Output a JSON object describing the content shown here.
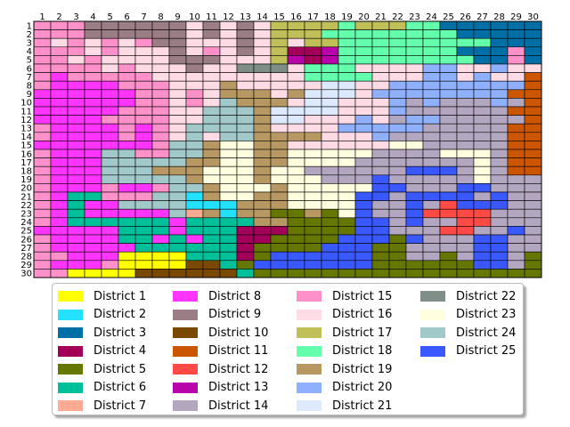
{
  "chart_data": {
    "type": "heatmap",
    "title": "",
    "xlabel": "",
    "ylabel": "",
    "x_ticks": [
      "1",
      "2",
      "3",
      "4",
      "5",
      "6",
      "7",
      "8",
      "9",
      "10",
      "11",
      "12",
      "13",
      "14",
      "15",
      "16",
      "17",
      "18",
      "19",
      "20",
      "21",
      "22",
      "23",
      "24",
      "25",
      "26",
      "27",
      "28",
      "29",
      "30"
    ],
    "y_ticks": [
      "1",
      "2",
      "3",
      "4",
      "5",
      "6",
      "7",
      "8",
      "9",
      "10",
      "11",
      "12",
      "13",
      "14",
      "15",
      "16",
      "17",
      "18",
      "19",
      "20",
      "21",
      "22",
      "23",
      "24",
      "25",
      "26",
      "27",
      "28",
      "29",
      "30"
    ],
    "legend_position": "bottom",
    "legend": [
      {
        "district": 1,
        "name": "District 1",
        "color": "#ffff00"
      },
      {
        "district": 2,
        "name": "District 2",
        "color": "#22e2ff"
      },
      {
        "district": 3,
        "name": "District 3",
        "color": "#006fa6"
      },
      {
        "district": 4,
        "name": "District 4",
        "color": "#a30059"
      },
      {
        "district": 5,
        "name": "District 5",
        "color": "#667700"
      },
      {
        "district": 6,
        "name": "District 6",
        "color": "#00c09a"
      },
      {
        "district": 7,
        "name": "District 7",
        "color": "#ffaa92"
      },
      {
        "district": 8,
        "name": "District 8",
        "color": "#ff34ff"
      },
      {
        "district": 9,
        "name": "District 9",
        "color": "#9a7d85"
      },
      {
        "district": 10,
        "name": "District 10",
        "color": "#7a4900"
      },
      {
        "district": 11,
        "name": "District 11",
        "color": "#cc5500"
      },
      {
        "district": 12,
        "name": "District 12",
        "color": "#ff4a46"
      },
      {
        "district": 13,
        "name": "District 13",
        "color": "#b903aa"
      },
      {
        "district": 14,
        "name": "District 14",
        "color": "#b3a6c0"
      },
      {
        "district": 15,
        "name": "District 15",
        "color": "#ff90c9"
      },
      {
        "district": 16,
        "name": "District 16",
        "color": "#ffdbe5"
      },
      {
        "district": 17,
        "name": "District 17",
        "color": "#c0bf58"
      },
      {
        "district": 18,
        "name": "District 18",
        "color": "#63ffac"
      },
      {
        "district": 19,
        "name": "District 19",
        "color": "#b79762"
      },
      {
        "district": 20,
        "name": "District 20",
        "color": "#8fb0ff"
      },
      {
        "district": 21,
        "name": "District 21",
        "color": "#dde9ff"
      },
      {
        "district": 22,
        "name": "District 22",
        "color": "#7f8f88"
      },
      {
        "district": 23,
        "name": "District 23",
        "color": "#ffffe0"
      },
      {
        "district": 24,
        "name": "District 24",
        "color": "#a2c9ca"
      },
      {
        "district": 25,
        "name": "District 25",
        "color": "#3a58ff"
      }
    ],
    "grid_rows": [
      "15 15 15 9 9 9 9 9 9 16 9 16 9 16 17 17 17 17 18 17 17 17 18 18 3 3 3 3 3 3",
      "15 15 15 9 9 9 9 9 9 16 9 16 9 16 17 17 17 18 18 18 18 18 18 18 18 3 3 3 3 3",
      "15 16 15 16 15 16 15 9 9 16 16 16 9 16 17 16 17 17 18 18 18 18 18 18 18 18 18 3 3 3",
      "15 15 15 16 15 16 16 16 9 16 15 16 9 16 17 4 4 13 18 18 18 18 18 18 18 3 3 3 15 3",
      "15 15 16 15 16 16 16 16 9 9 9 16 16 16 17 13 4 13 18 18 18 18 18 18 18 18 3 3 15 3",
      "15 15 15 15 16 15 16 16 16 9 16 16 22 22 22 16 18 18 18 16 16 16 16 20 20 16 16 20 16 16",
      "15 8 15 15 15 15 15 16 16 16 16 16 16 16 16 16 18 18 18 18 16 16 16 20 20 16 20 16 16 11",
      "15 8 8 8 8 15 15 15 16 16 16 19 16 16 16 16 16 21 21 16 16 20 20 20 20 20 20 20 20 11",
      "8 8 8 8 8 8 15 15 16 15 16 19 19 19 16 19 21 21 21 16 20 20 20 20 20 20 20 20 11 11",
      "8 8 8 8 8 8 15 15 16 15 16 24 19 19 19 16 21 21 16 16 16 20 14 20 14 14 14 20 14 11",
      "8 8 8 8 8 15 15 15 16 16 24 24 24 19 21 21 21 21 16 16 16 20 14 14 14 14 14 14 11 11",
      "8 8 8 8 15 15 15 15 16 16 24 24 24 19 21 21 16 16 16 20 16 14 20 20 14 14 14 14 14 11",
      "15 8 8 8 8 15 8 15 16 24 24 24 24 19 16 16 16 16 20 20 20 20 20 14 14 14 14 14 11 11",
      "15 8 8 8 8 15 8 15 16 24 16 24 24 19 19 19 19 16 16 16 20 14 14 14 14 14 14 14 11 11",
      "8 8 8 8 8 8 8 15 24 24 19 23 23 19 19 16 16 16 16 16 16 23 23 14 14 14 14 14 11 11",
      "15 8 8 8 24 24 15 15 24 24 19 23 23 19 19 23 23 23 23 23 14 14 14 14 23 23 23 14 11 11",
      "15 8 8 8 24 24 24 24 24 19 19 23 23 19 19 23 23 23 23 14 14 14 14 14 14 14 23 14 11 11",
      "15 8 8 8 24 24 24 19 19 19 23 23 23 19 23 23 14 14 14 14 14 14 25 25 25 14 23 14 11 11",
      "15 8 8 8 24 24 24 24 24 19 23 23 23 19 23 23 23 14 14 14 25 14 14 14 14 14 23 14 14 14",
      "15 8 8 8 15 8 8 15 24 24 19 23 23 23 19 23 23 23 23 23 25 25 14 14 14 25 25 14 14 14",
      "15 8 6 6 15 15 15 24 24 2 19 23 23 19 19 23 23 23 23 25 25 14 25 25 25 25 14 25 14 14",
      "15 8 6 8 8 24 24 24 24 2 2 2 19 19 19 23 23 23 23 25 14 14 25 14 12 25 25 25 14 14",
      "15 8 6 8 8 8 8 8 24 7 19 2 19 19 5 5 19 5 23 25 14 14 25 12 12 12 12 14 14 14",
      "15 8 6 6 6 6 6 6 8 6 6 6 6 19 19 5 5 5 5 25 25 14 25 14 14 12 12 14 14 14",
      "8 8 8 8 8 6 6 6 8 6 6 6 4 4 4 5 5 5 5 25 25 14 14 14 12 12 14 14 25 14",
      "15 8 8 8 8 6 6 8 6 8 6 6 4 4 5 5 5 5 25 25 25 5 25 14 14 14 25 25 14 14",
      "15 8 8 8 8 8 6 6 6 6 6 6 4 5 5 5 5 25 25 25 5 5 14 14 14 14 25 25 14 14",
      "15 15 8 8 8 1 1 1 1 6 6 6 4 5 25 25 25 25 25 25 5 5 14 14 5 14 25 25 14 5",
      "15 8 8 8 15 1 1 1 1 10 10 6 5 25 25 25 25 25 25 25 5 5 5 5 5 5 25 25 14 5",
      "15 15 1 1 1 1 10 10 10 10 10 10 6 5 5 5 5 5 5 5 5 5 5 5 5 5 5 5 5 5"
    ]
  }
}
